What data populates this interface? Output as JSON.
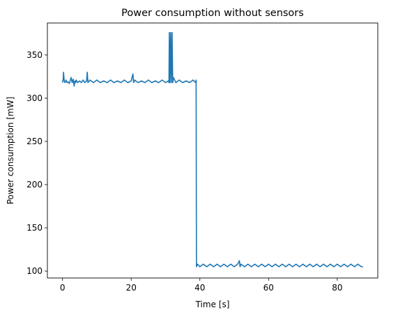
{
  "chart_data": {
    "type": "line",
    "title": "Power consumption without sensors",
    "xlabel": "Time [s]",
    "ylabel": "Power consumption [mW]",
    "xlim": [
      -4.4,
      91.8
    ],
    "ylim": [
      92,
      387
    ],
    "xticks": [
      0,
      20,
      40,
      60,
      80
    ],
    "xtick_labels": [
      "0",
      "20",
      "40",
      "60",
      "80"
    ],
    "yticks": [
      100,
      150,
      200,
      250,
      300,
      350
    ],
    "ytick_labels": [
      "100",
      "150",
      "200",
      "250",
      "300",
      "350"
    ],
    "grid": false,
    "legend": "none",
    "series": [
      {
        "color": "#1f77b4",
        "x": [
          0,
          0.2,
          0.3,
          0.5,
          0.7,
          1.0,
          1.3,
          1.6,
          2.0,
          2.5,
          2.8,
          3.1,
          3.4,
          3.6,
          3.8,
          4.0,
          4.4,
          5.0,
          5.5,
          6.0,
          6.5,
          7.0,
          7.2,
          7.4,
          8.0,
          9.0,
          10.0,
          11.0,
          12.0,
          13.0,
          14.0,
          15.0,
          16.0,
          17.0,
          18.0,
          19.0,
          20.0,
          20.5,
          20.7,
          21.0,
          22.0,
          23.0,
          24.0,
          25.0,
          26.0,
          27.0,
          28.0,
          29.0,
          30.0,
          30.8,
          31.0,
          31.1,
          31.3,
          31.5,
          31.7,
          31.9,
          32.1,
          32.3,
          33.0,
          34.0,
          35.0,
          36.0,
          37.0,
          38.0,
          38.8,
          38.9,
          39.0,
          39.3,
          40.0,
          41.0,
          42.0,
          43.0,
          44.0,
          45.0,
          46.0,
          47.0,
          48.0,
          49.0,
          50.0,
          51.0,
          51.5,
          51.7,
          52.0,
          53.0,
          54.0,
          55.0,
          56.0,
          57.0,
          58.0,
          59.0,
          60.0,
          61.0,
          62.0,
          63.0,
          64.0,
          65.0,
          66.0,
          67.0,
          68.0,
          69.0,
          70.0,
          71.0,
          72.0,
          73.0,
          74.0,
          75.0,
          76.0,
          77.0,
          78.0,
          79.0,
          80.0,
          81.0,
          82.0,
          83.0,
          84.0,
          85.0,
          86.0,
          87.0,
          87.5
        ],
        "y": [
          318,
          322,
          330,
          320,
          318,
          321,
          318,
          319,
          317,
          324,
          318,
          322,
          314,
          320,
          318,
          321,
          318,
          320,
          318,
          321,
          318,
          320,
          330,
          318,
          321,
          318,
          321,
          318,
          320,
          318,
          321,
          318,
          320,
          318,
          321,
          318,
          320,
          328,
          318,
          321,
          318,
          320,
          318,
          321,
          318,
          320,
          318,
          321,
          318,
          320,
          318,
          376,
          318,
          376,
          318,
          376,
          318,
          324,
          318,
          321,
          318,
          320,
          318,
          321,
          318,
          321,
          105,
          108,
          105,
          108,
          105,
          108,
          105,
          108,
          105,
          108,
          105,
          108,
          105,
          108,
          112,
          105,
          108,
          105,
          108,
          105,
          108,
          105,
          108,
          105,
          108,
          105,
          108,
          105,
          108,
          105,
          108,
          105,
          108,
          105,
          108,
          105,
          108,
          105,
          108,
          105,
          108,
          105,
          108,
          105,
          108,
          105,
          108,
          105,
          108,
          105,
          108,
          105,
          105
        ]
      }
    ]
  }
}
